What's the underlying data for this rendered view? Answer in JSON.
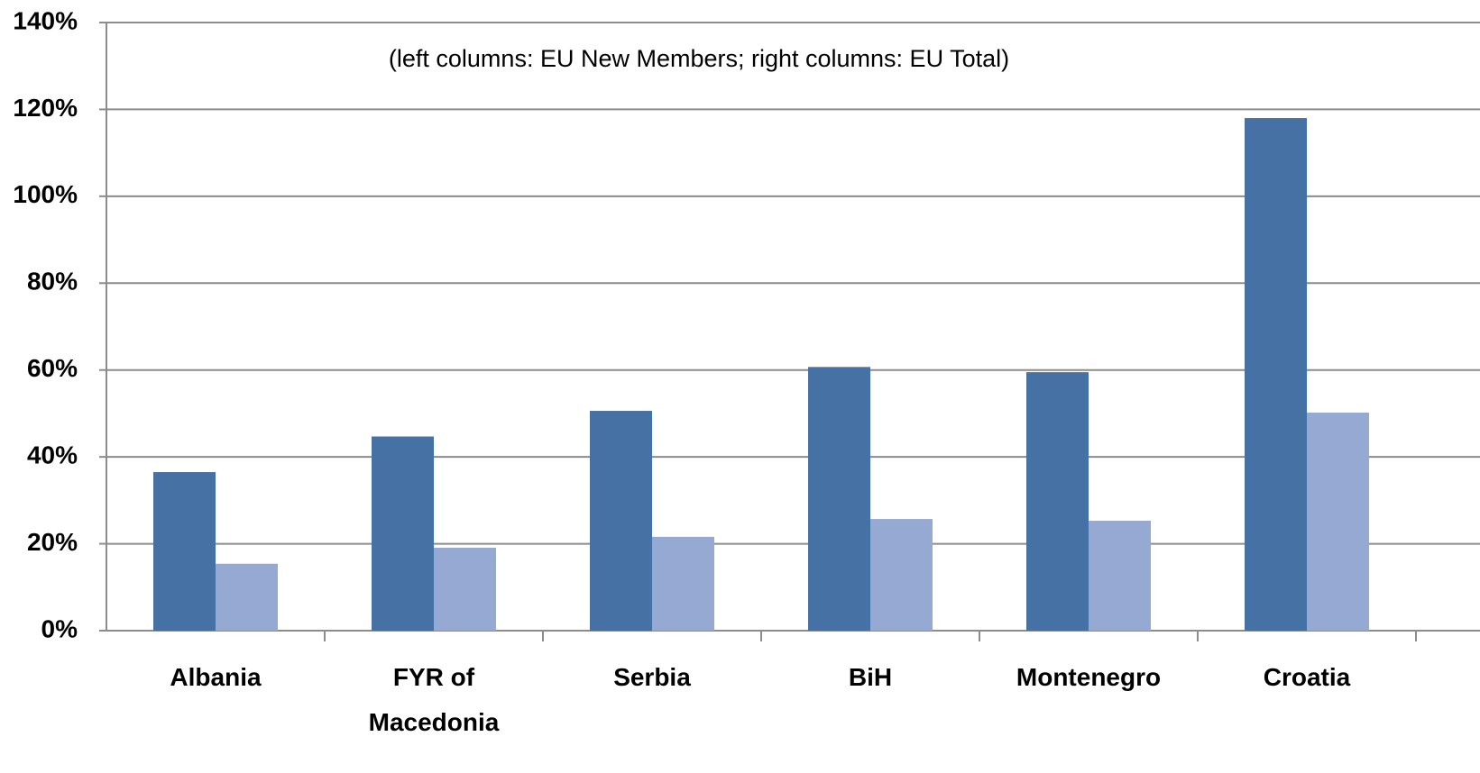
{
  "chart_data": {
    "type": "bar",
    "annotation": "(left columns: EU New Members; right columns: EU Total)",
    "categories": [
      "Albania",
      "FYR of Macedonia",
      "Serbia",
      "BiH",
      "Montenegro",
      "Croatia"
    ],
    "series": [
      {
        "color": "#4571a5",
        "values": [
          36.5,
          44.7,
          50.6,
          60.7,
          59.5,
          118
        ]
      },
      {
        "color": "#95a9d2",
        "values": [
          15.4,
          19.1,
          21.6,
          25.7,
          25.3,
          50.2
        ]
      }
    ],
    "ylim": [
      0,
      140
    ],
    "yticks": [
      {
        "value": 0,
        "label": "0%"
      },
      {
        "value": 20,
        "label": "20%"
      },
      {
        "value": 40,
        "label": "40%"
      },
      {
        "value": 60,
        "label": "60%"
      },
      {
        "value": 80,
        "label": "80%"
      },
      {
        "value": 100,
        "label": "100%"
      },
      {
        "value": 120,
        "label": "120%"
      },
      {
        "value": 140,
        "label": "140%"
      }
    ],
    "grid": true
  }
}
